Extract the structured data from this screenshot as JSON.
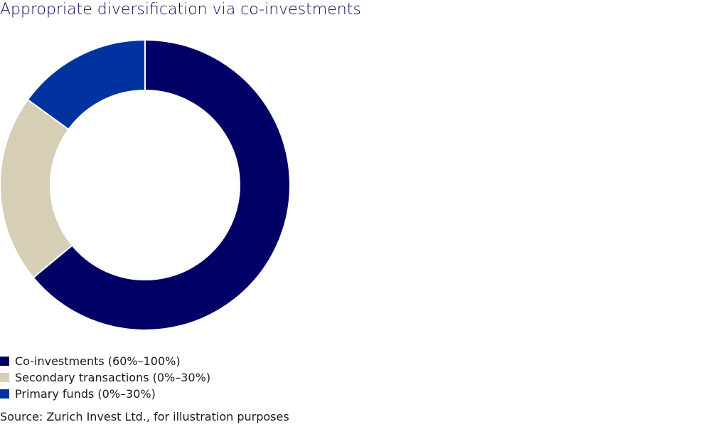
{
  "title": "Appropriate diversification via co-investments",
  "source": "Source: Zurich Invest Ltd., for illustration purposes",
  "chart_data": {
    "type": "pie",
    "variant": "donut",
    "start_angle": "top, clockwise",
    "slices": [
      {
        "name": "Co-investments (60%–100%)",
        "value": 64,
        "color": "#000066"
      },
      {
        "name": "Secondary transactions (0%–30%)",
        "value": 21,
        "color": "#d6cfb6"
      },
      {
        "name": "Primary funds (0%–30%)",
        "value": 15,
        "color": "#0033a0"
      }
    ]
  }
}
